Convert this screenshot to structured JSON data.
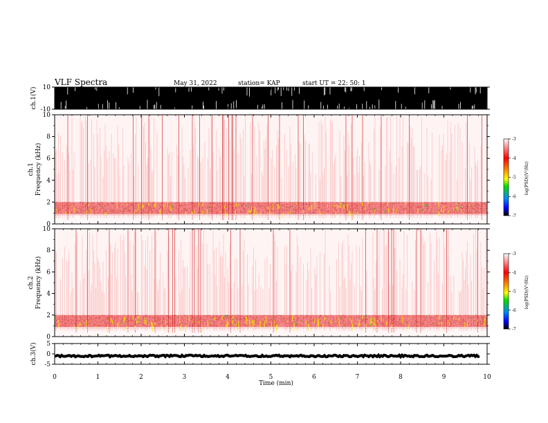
{
  "header": {
    "title": "VLF Spectra",
    "date": "May 31, 2022",
    "station": "station= KAP",
    "start": "start  UT  =    22: 50: 1"
  },
  "chart_data": [
    {
      "type": "line",
      "panel": "waveform-ch1",
      "ylabel": "ch.1(V)",
      "ylim": [
        -10,
        10
      ],
      "yticks": [
        10,
        -10
      ],
      "description": "saturated waveform"
    },
    {
      "type": "heatmap",
      "panel": "spectrogram-ch1",
      "ylabel_lines": [
        "ch.1",
        "Frequency  (kHz)"
      ],
      "ylim": [
        0,
        10
      ],
      "yticks": [
        0,
        2,
        4,
        6,
        8,
        10
      ],
      "xlim": [
        0,
        10
      ],
      "colorbar": {
        "label": "log(PSD)(V²/Hz)",
        "range": [
          -7,
          -3
        ],
        "ticks": [
          -3,
          -4,
          -5,
          -6,
          -7
        ]
      }
    },
    {
      "type": "heatmap",
      "panel": "spectrogram-ch2",
      "ylabel_lines": [
        "ch.2",
        "Frequency  (kHz)"
      ],
      "ylim": [
        0,
        10
      ],
      "yticks": [
        0,
        2,
        4,
        6,
        8,
        10
      ],
      "xlim": [
        0,
        10
      ],
      "colorbar": {
        "label": "log(PSD)(V²/Hz)",
        "range": [
          -7,
          -3
        ],
        "ticks": [
          -3,
          -4,
          -5,
          -6,
          -7
        ]
      }
    },
    {
      "type": "line",
      "panel": "waveform-ch3",
      "ylabel": "ch.3(V)",
      "ylim": [
        -5,
        5
      ],
      "yticks": [
        5,
        0,
        -5
      ],
      "description": "near-constant signal around -1 V"
    }
  ],
  "x_axis": {
    "label": "Time  (min)",
    "ticks": [
      "0",
      "1",
      "2",
      "3",
      "4",
      "5",
      "6",
      "7",
      "8",
      "9",
      "10"
    ],
    "range": [
      0,
      10
    ]
  },
  "colors": {
    "spec_red": "#e8202a",
    "spec_yellow": "#f2e600",
    "spec_green": "#20b030"
  }
}
